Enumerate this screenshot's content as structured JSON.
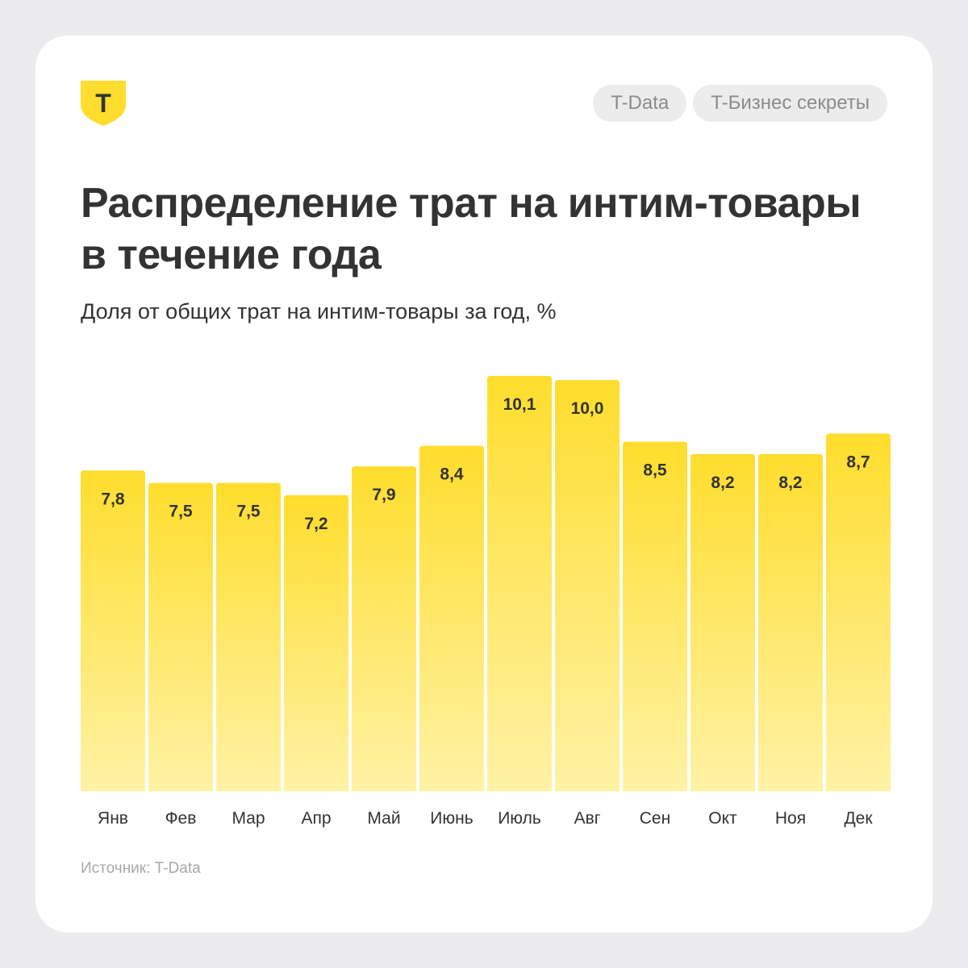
{
  "header": {
    "tags": [
      "T-Data",
      "T-Бизнес секреты"
    ]
  },
  "title": "Распределение трат на интим-товары в течение года",
  "subtitle": "Доля от общих трат на интим-товары за год, %",
  "source": "Источник: T-Data",
  "logo": {
    "icon": "t-shield-logo-icon",
    "letter": "Т"
  },
  "colors": {
    "bar_top": "#ffdd2d",
    "bar_bottom": "#fff2a6",
    "text": "#333333",
    "muted": "#a8a8a8"
  },
  "chart_data": {
    "type": "bar",
    "categories": [
      "Янв",
      "Фев",
      "Мар",
      "Апр",
      "Май",
      "Июнь",
      "Июль",
      "Авг",
      "Сен",
      "Окт",
      "Ноя",
      "Дек"
    ],
    "values": [
      7.8,
      7.5,
      7.5,
      7.2,
      7.9,
      8.4,
      10.1,
      10.0,
      8.5,
      8.2,
      8.2,
      8.7
    ],
    "value_labels": [
      "7,8",
      "7,5",
      "7,5",
      "7,2",
      "7,9",
      "8,4",
      "10,1",
      "10,0",
      "8,5",
      "8,2",
      "8,2",
      "8,7"
    ],
    "title": "Распределение трат на интим-товары в течение года",
    "xlabel": "",
    "ylabel": "Доля от общих трат на интим-товары за год, %",
    "ylim": [
      0,
      10.1
    ],
    "grid": false,
    "legend": "none"
  }
}
